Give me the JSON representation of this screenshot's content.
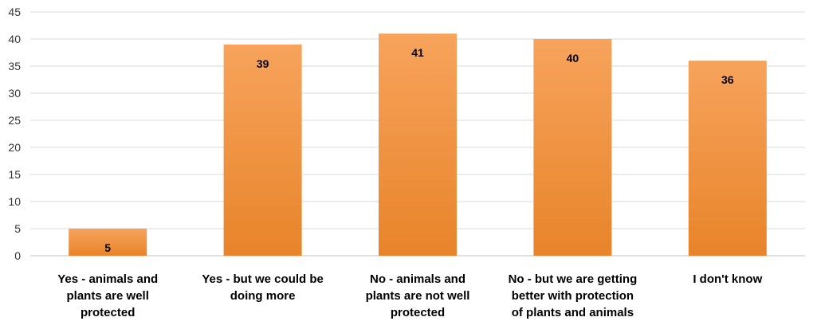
{
  "chart_data": {
    "type": "bar",
    "title": "",
    "xlabel": "",
    "ylabel": "",
    "categories": [
      [
        "Yes - animals and",
        "plants are well",
        "protected"
      ],
      [
        "Yes - but we could be",
        "doing more"
      ],
      [
        "No - animals and",
        "plants are not well",
        "protected"
      ],
      [
        "No - but we are getting",
        "better with protection",
        "of plants and animals"
      ],
      [
        "I don't know"
      ]
    ],
    "values": [
      5,
      39,
      41,
      40,
      36
    ],
    "data_labels": [
      "5",
      "39",
      "41",
      "40",
      "36"
    ],
    "ylim": [
      0,
      45
    ],
    "yticks": [
      0,
      5,
      10,
      15,
      20,
      25,
      30,
      35,
      40,
      45
    ],
    "grid": true,
    "legend": "none",
    "bar_color_top": "#f7a35c",
    "bar_color_bottom": "#e8842a"
  }
}
